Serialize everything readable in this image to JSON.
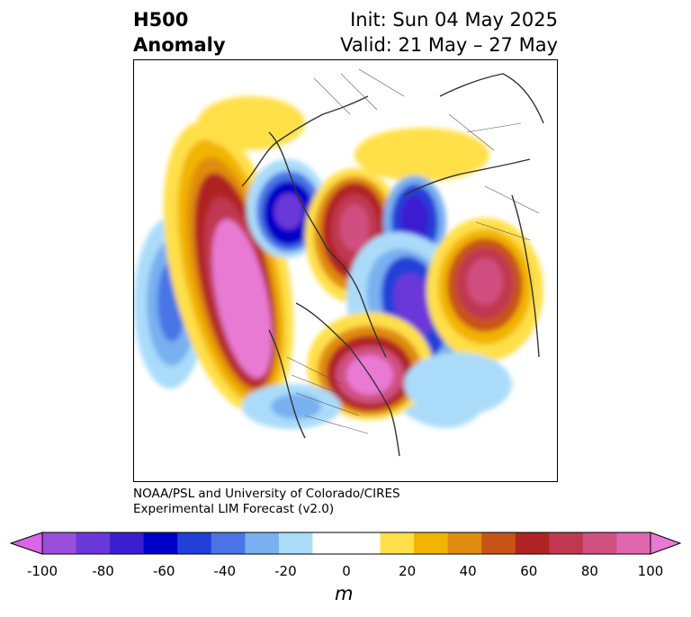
{
  "header": {
    "left_line1": "H500",
    "left_line2": "Anomaly",
    "right_line1": "Init: Sun 04 May 2025",
    "right_line2": "Valid: 21 May – 27 May"
  },
  "credit": {
    "line1": "NOAA/PSL and University of Colorado/CIRES",
    "line2": "Experimental LIM Forecast (v2.0)"
  },
  "colorbar": {
    "ticks": [
      "-100",
      "-80",
      "-60",
      "-40",
      "-20",
      "0",
      "20",
      "40",
      "60",
      "80",
      "100"
    ],
    "unit": "m",
    "colors": [
      "#d966e6",
      "#9a4fdc",
      "#6a38d8",
      "#3a1fd0",
      "#0000c8",
      "#2240d8",
      "#4a74e6",
      "#78b0f0",
      "#aadcfa",
      "#ffffff",
      "#ffffff",
      "#ffe04a",
      "#f2b400",
      "#e08c10",
      "#c85418",
      "#b02424",
      "#c03850",
      "#d05080",
      "#e066b0",
      "#e87ad4"
    ]
  }
}
